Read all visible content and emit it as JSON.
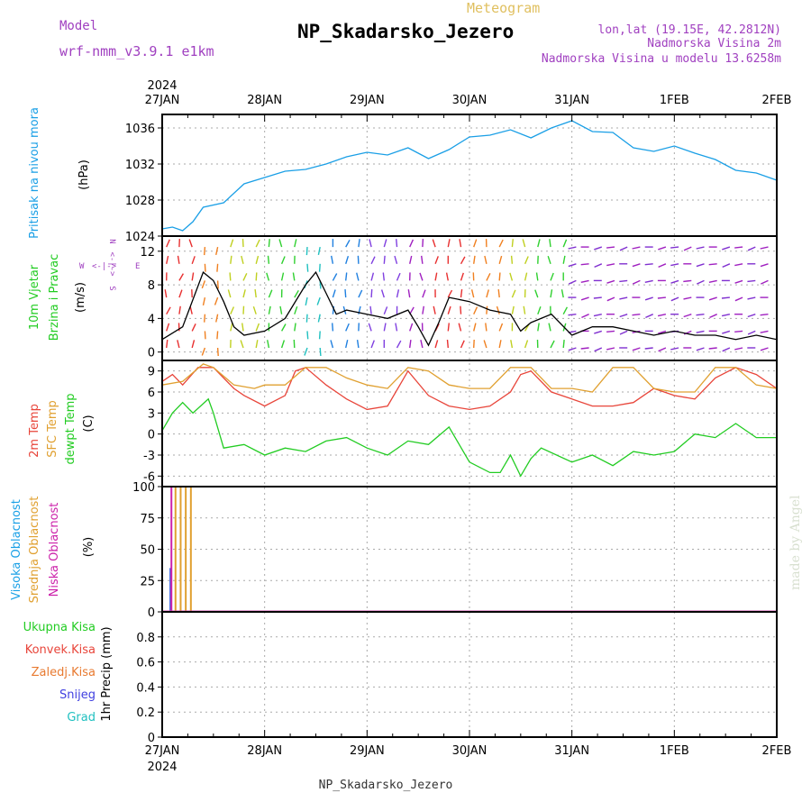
{
  "header": {
    "model_label": "Model",
    "model_name": "wrf-nmm_v3.9.1  e1km",
    "meteogram_label": "Meteogram",
    "station": "NP_Skadarsko_Jezero",
    "lonlat": "lon,lat (19.15E, 42.2812N)",
    "elevation": "Nadmorska Visina 2m",
    "model_elevation": "Nadmorska Visina u modelu 13.6258m",
    "year_top": "2024",
    "year_bottom": "2024",
    "footer_station": "NP_Skadarsko_Jezero",
    "watermark": "made by Angel"
  },
  "colors": {
    "pressure": "#1a9fe6",
    "temp2m": "#e8453a",
    "sfc_temp": "#e0a030",
    "dewpoint": "#22cc22",
    "visoka": "#1aa0e6",
    "srednja": "#e0a030",
    "niska": "#cc22aa",
    "grid": "#aaaaaa"
  },
  "time_axis": {
    "labels": [
      "27JAN",
      "28JAN",
      "29JAN",
      "30JAN",
      "31JAN",
      "1FEB",
      "2FEB"
    ],
    "days": [
      0,
      1,
      2,
      3,
      4,
      5,
      6
    ]
  },
  "panels": {
    "pressure": {
      "label1": "Pritisak na nivou mora",
      "label2": "(hPa)"
    },
    "wind": {
      "label1": "10m Vjetar",
      "label2": "Brzina i Pravac",
      "label3": "(m/s)",
      "legend_n": "N",
      "legend_w": "W",
      "legend_e": "E",
      "legend_s": "S",
      "legend_arrows": "<-|->"
    },
    "temp": {
      "label1": "2m Temp",
      "label2": "SFC Temp",
      "label3": "dewpt Temp",
      "label4": "(C)"
    },
    "cloud": {
      "label1": "Visoka Oblacnost",
      "label2": "Srednja Oblacnost",
      "label3": "Niska Oblacnost",
      "label4": "(%)"
    },
    "precip": {
      "label1": "Ukupna Kisa",
      "label2": "Konvek.Kisa",
      "label3": "Zaledj.Kisa",
      "label4": "Snijeg",
      "label5": "Grad",
      "label6": "1hr Precip (mm)"
    }
  },
  "chart_data": [
    {
      "type": "line",
      "panel": "pressure",
      "ylabel": "(hPa)",
      "ylim": [
        1024,
        1037.5
      ],
      "yticks": [
        1024,
        1028,
        1032,
        1036
      ],
      "series": [
        {
          "name": "Pritisak na nivou mora",
          "x": [
            0.0,
            0.1,
            0.2,
            0.3,
            0.4,
            0.6,
            0.8,
            1.0,
            1.2,
            1.4,
            1.6,
            1.8,
            2.0,
            2.2,
            2.4,
            2.6,
            2.8,
            3.0,
            3.2,
            3.4,
            3.6,
            3.8,
            4.0,
            4.2,
            4.4,
            4.6,
            4.8,
            5.0,
            5.2,
            5.4,
            5.6,
            5.8,
            6.0
          ],
          "y": [
            1024.8,
            1025.0,
            1024.6,
            1025.6,
            1027.2,
            1027.7,
            1029.8,
            1030.5,
            1031.2,
            1031.4,
            1032.0,
            1032.8,
            1033.3,
            1033.0,
            1033.8,
            1032.6,
            1033.6,
            1035.0,
            1035.2,
            1035.8,
            1034.9,
            1036.0,
            1036.8,
            1035.6,
            1035.5,
            1033.8,
            1033.4,
            1034.0,
            1033.2,
            1032.5,
            1031.3,
            1031.0,
            1030.2
          ]
        }
      ]
    },
    {
      "type": "line",
      "panel": "wind",
      "ylabel": "(m/s)",
      "ylim": [
        -1,
        13.8
      ],
      "yticks": [
        0,
        4,
        8,
        12
      ],
      "series": [
        {
          "name": "Brzina",
          "x": [
            0.0,
            0.2,
            0.4,
            0.5,
            0.6,
            0.7,
            0.8,
            1.0,
            1.2,
            1.4,
            1.5,
            1.6,
            1.7,
            1.8,
            2.0,
            2.2,
            2.4,
            2.5,
            2.6,
            2.7,
            2.8,
            3.0,
            3.2,
            3.4,
            3.5,
            3.6,
            3.8,
            4.0,
            4.2,
            4.4,
            4.6,
            4.8,
            5.0,
            5.2,
            5.4,
            5.6,
            5.8,
            6.0
          ],
          "y": [
            1.5,
            3.0,
            9.5,
            8.5,
            6.0,
            3.0,
            2.0,
            2.5,
            4.0,
            8.0,
            9.5,
            7.0,
            4.5,
            5.0,
            4.5,
            4.0,
            5.0,
            3.0,
            0.8,
            3.5,
            6.5,
            6.0,
            5.0,
            4.5,
            2.5,
            3.5,
            4.5,
            2.0,
            3.0,
            3.0,
            2.5,
            2.0,
            2.5,
            2.0,
            2.0,
            1.5,
            2.0,
            1.5
          ]
        }
      ]
    },
    {
      "type": "line",
      "panel": "temp",
      "ylabel": "(C)",
      "ylim": [
        -7.5,
        10.5
      ],
      "yticks": [
        -6,
        -3,
        0,
        3,
        6,
        9
      ],
      "series": [
        {
          "name": "2m Temp",
          "x": [
            0.0,
            0.1,
            0.2,
            0.35,
            0.5,
            0.7,
            0.8,
            1.0,
            1.2,
            1.3,
            1.4,
            1.6,
            1.8,
            2.0,
            2.2,
            2.4,
            2.6,
            2.8,
            3.0,
            3.2,
            3.4,
            3.5,
            3.6,
            3.8,
            4.0,
            4.2,
            4.4,
            4.6,
            4.8,
            5.0,
            5.2,
            5.4,
            5.6,
            5.8,
            6.0
          ],
          "y": [
            7.5,
            8.5,
            7.0,
            9.5,
            9.5,
            6.5,
            5.5,
            4.0,
            5.5,
            9.0,
            9.5,
            7.0,
            5.0,
            3.5,
            4.0,
            9.0,
            5.5,
            4.0,
            3.5,
            4.0,
            6.0,
            8.5,
            9.0,
            6.0,
            5.0,
            4.0,
            4.0,
            4.5,
            6.5,
            5.5,
            5.0,
            8.0,
            9.5,
            8.5,
            6.5
          ]
        },
        {
          "name": "SFC Temp",
          "x": [
            0.0,
            0.2,
            0.4,
            0.5,
            0.7,
            0.9,
            1.0,
            1.2,
            1.4,
            1.6,
            1.8,
            2.0,
            2.2,
            2.4,
            2.6,
            2.8,
            3.0,
            3.2,
            3.4,
            3.6,
            3.8,
            4.0,
            4.2,
            4.4,
            4.6,
            4.8,
            5.0,
            5.2,
            5.4,
            5.6,
            5.8,
            6.0
          ],
          "y": [
            7.0,
            7.5,
            10.0,
            9.5,
            7.0,
            6.5,
            7.0,
            7.0,
            9.5,
            9.5,
            8.0,
            7.0,
            6.5,
            9.5,
            9.0,
            7.0,
            6.5,
            6.5,
            9.5,
            9.5,
            6.5,
            6.5,
            6.0,
            9.5,
            9.5,
            6.5,
            6.0,
            6.0,
            9.5,
            9.5,
            7.0,
            6.5
          ]
        },
        {
          "name": "dewpt Temp",
          "x": [
            0.0,
            0.1,
            0.2,
            0.3,
            0.45,
            0.5,
            0.6,
            0.8,
            1.0,
            1.2,
            1.4,
            1.6,
            1.8,
            2.0,
            2.2,
            2.4,
            2.6,
            2.8,
            3.0,
            3.2,
            3.3,
            3.4,
            3.5,
            3.6,
            3.7,
            4.0,
            4.2,
            4.4,
            4.6,
            4.8,
            5.0,
            5.2,
            5.4,
            5.6,
            5.8,
            6.0
          ],
          "y": [
            0.5,
            3.0,
            4.5,
            3.0,
            5.0,
            3.0,
            -2.0,
            -1.5,
            -3.0,
            -2.0,
            -2.5,
            -1.0,
            -0.5,
            -2.0,
            -3.0,
            -1.0,
            -1.5,
            1.0,
            -4.0,
            -5.5,
            -5.5,
            -3.0,
            -6.0,
            -3.5,
            -2.0,
            -4.0,
            -3.0,
            -4.5,
            -2.5,
            -3.0,
            -2.5,
            0.0,
            -0.5,
            1.5,
            -0.5,
            -0.5
          ]
        }
      ]
    },
    {
      "type": "bar",
      "panel": "cloud",
      "ylabel": "(%)",
      "ylim": [
        0,
        100
      ],
      "yticks": [
        0,
        25,
        50,
        75,
        100
      ],
      "series": [
        {
          "name": "Visoka Oblacnost",
          "x": [
            0.08
          ],
          "values": [
            35
          ]
        },
        {
          "name": "Srednja Oblacnost",
          "x": [
            0.13,
            0.18,
            0.23,
            0.28
          ],
          "values": [
            100,
            100,
            100,
            100
          ]
        },
        {
          "name": "Niska Oblacnost",
          "x": [
            0.09
          ],
          "values": [
            100
          ]
        }
      ]
    },
    {
      "type": "line",
      "panel": "precip",
      "ylabel": "1hr Precip (mm)",
      "ylim": [
        0,
        1
      ],
      "yticks": [
        0,
        0.2,
        0.4,
        0.6,
        0.8
      ],
      "series": [
        {
          "name": "Ukupna Kisa",
          "x": [
            0,
            6
          ],
          "y": [
            0,
            0
          ]
        }
      ]
    }
  ]
}
